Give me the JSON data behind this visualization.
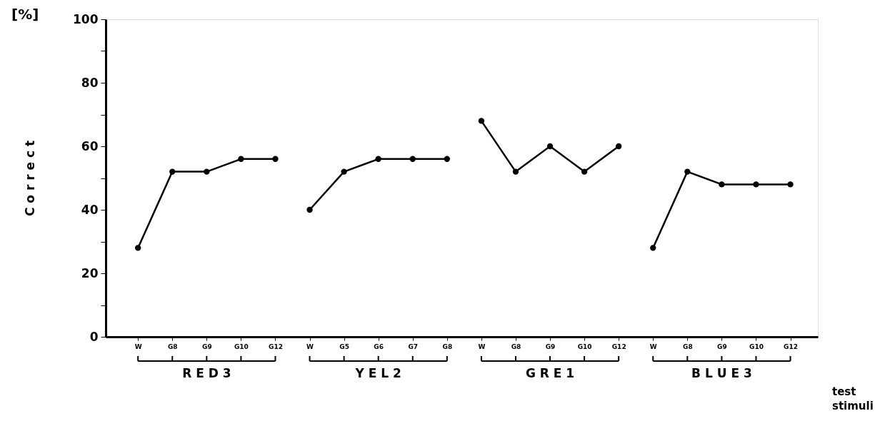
{
  "chart_data": {
    "type": "line",
    "ylabel": "C o r r e c t",
    "xlabel": "test stimuli",
    "annotations": [
      "[%]"
    ],
    "categories": [
      "W",
      "G8",
      "G9",
      "G10",
      "G12",
      "W",
      "G5",
      "G6",
      "G7",
      "G8",
      "W",
      "G8",
      "G9",
      "G10",
      "G12",
      "W",
      "G8",
      "G9",
      "G10",
      "G12"
    ],
    "series": [
      {
        "name": "R E D   3",
        "color": "#000000",
        "values": [
          28,
          52,
          52,
          56,
          56,
          null,
          null,
          null,
          null,
          null,
          null,
          null,
          null,
          null,
          null,
          null,
          null,
          null,
          null,
          null
        ]
      },
      {
        "name": "Y E L   2",
        "color": "#000000",
        "values": [
          null,
          null,
          null,
          null,
          null,
          40,
          52,
          56,
          56,
          56,
          null,
          null,
          null,
          null,
          null,
          null,
          null,
          null,
          null,
          null
        ]
      },
      {
        "name": "G R E   1",
        "color": "#000000",
        "values": [
          null,
          null,
          null,
          null,
          null,
          null,
          null,
          null,
          null,
          null,
          68,
          52,
          60,
          52,
          60,
          null,
          null,
          null,
          null,
          null
        ]
      },
      {
        "name": "B L U E   3",
        "color": "#000000",
        "values": [
          null,
          null,
          null,
          null,
          null,
          null,
          null,
          null,
          null,
          null,
          null,
          null,
          null,
          null,
          null,
          28,
          52,
          48,
          48,
          48
        ]
      }
    ],
    "ylim": [
      0,
      100
    ],
    "yticks": [
      0,
      {
        "value": 10,
        "label": null
      },
      20,
      {
        "value": 30,
        "label": null
      },
      40,
      {
        "value": 50,
        "label": null
      },
      60,
      {
        "value": 70,
        "label": null
      },
      80,
      {
        "value": 90,
        "label": null
      },
      100
    ],
    "grid": false,
    "legend": "bottom",
    "marker": "circle",
    "line_style": "solid"
  }
}
